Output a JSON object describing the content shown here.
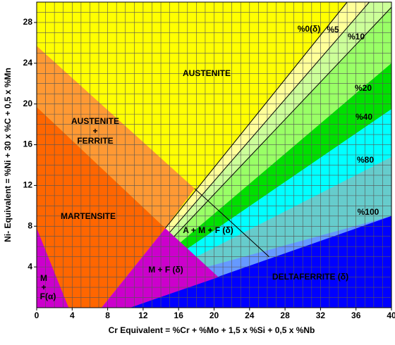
{
  "chart_data": {
    "type": "region",
    "x_label": "Cr Equivalent = %Cr + %Mo + 1,5 x %Si + 0,5 x %Nb",
    "y_label": "Ni- Equivalent = %Ni + 30 x %C + 0,5 x %Mn",
    "xlim": [
      0,
      40
    ],
    "ylim": [
      0,
      30
    ],
    "xticks": [
      0,
      4,
      8,
      12,
      16,
      20,
      24,
      28,
      32,
      36,
      40
    ],
    "yticks": [
      4,
      8,
      12,
      16,
      20,
      24,
      28
    ],
    "grid": true,
    "background": "#ffff00",
    "regions": [
      {
        "color": "#ffff99",
        "x": [
          14.5,
          35,
          40,
          40,
          14.5
        ],
        "y": [
          7.8,
          30,
          30,
          0,
          0
        ]
      },
      {
        "color": "#ccff99",
        "x": [
          15.0,
          37.5,
          40,
          40,
          15.0
        ],
        "y": [
          7.4,
          30,
          30,
          0,
          0
        ]
      },
      {
        "color": "#99ff66",
        "x": [
          15.5,
          40,
          40,
          15.5
        ],
        "y": [
          7.0,
          29.5,
          0,
          0
        ]
      },
      {
        "color": "#00e000",
        "x": [
          16.2,
          40,
          40,
          16.2
        ],
        "y": [
          6.4,
          24,
          0,
          0
        ]
      },
      {
        "color": "#00ffff",
        "x": [
          17.0,
          40,
          40,
          17.0
        ],
        "y": [
          5.8,
          19.5,
          0,
          0
        ]
      },
      {
        "color": "#66cccc",
        "x": [
          18.0,
          40,
          40,
          18.0
        ],
        "y": [
          5.0,
          14.8,
          0,
          0
        ]
      },
      {
        "color": "#6699ff",
        "x": [
          19.2,
          40,
          40,
          19.2
        ],
        "y": [
          4.0,
          9,
          0,
          0
        ]
      },
      {
        "color": "#0000ff",
        "x": [
          10.5,
          40,
          40
        ],
        "y": [
          0,
          9,
          0
        ]
      },
      {
        "color": "#ff9933",
        "x": [
          0,
          17.8,
          14.5,
          0
        ],
        "y": [
          25.7,
          11.7,
          7.8,
          19.7
        ]
      },
      {
        "color": "#ff6600",
        "x": [
          0,
          14.5,
          7.3,
          0
        ],
        "y": [
          19.7,
          7.8,
          0,
          0
        ]
      },
      {
        "color": "#cc00cc",
        "x": [
          14.5,
          20.5,
          10.5,
          7.3
        ],
        "y": [
          7.8,
          3,
          0,
          0
        ]
      },
      {
        "color": "#cc00cc",
        "x": [
          0,
          3.6,
          0
        ],
        "y": [
          7.8,
          0,
          0
        ]
      }
    ],
    "lines": [
      {
        "x": [
          14.5,
          35
        ],
        "y": [
          7.8,
          30
        ]
      },
      {
        "x": [
          15.0,
          37.5
        ],
        "y": [
          7.4,
          30
        ]
      },
      {
        "x": [
          15.5,
          40
        ],
        "y": [
          7.0,
          29.5
        ]
      },
      {
        "x": [
          17.8,
          26.2
        ],
        "y": [
          11.7,
          5
        ]
      }
    ],
    "labels": [
      "AUSTENITE",
      "AUSTENITE",
      "+",
      "FERRITE",
      "MARTENSITE",
      "A + M + F (δ)",
      "M + F  (δ)",
      "DELTAFERRITE (δ)",
      "M",
      "+",
      "F(α)",
      "%0(δ)",
      "%5",
      "%10",
      "%20",
      "%40",
      "%80",
      "%100"
    ]
  }
}
